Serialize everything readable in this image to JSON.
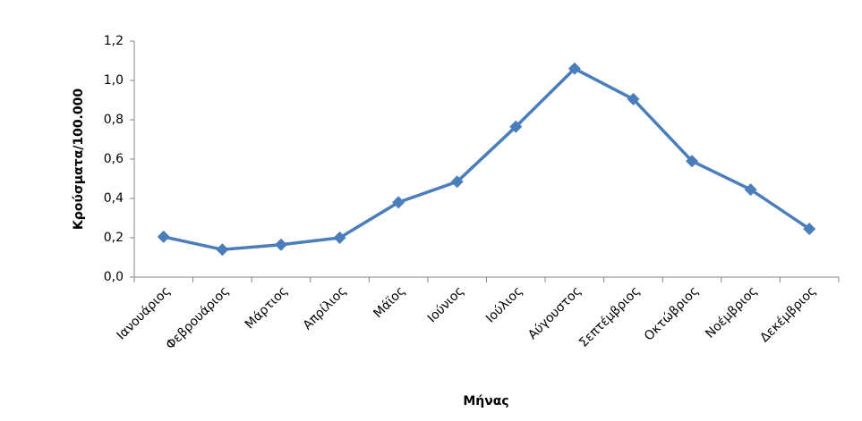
{
  "chart_data": {
    "type": "line",
    "x_label": "Μήνας",
    "y_label": "Κρούσματα/100.000",
    "categories": [
      "Ιανουάριος",
      "Φεβρουάριος",
      "Μάρτιος",
      "Απρίλιος",
      "Μάϊος",
      "Ιούνιος",
      "Ιούλιος",
      "Αύγουστος",
      "Σεπτέμβριος",
      "Οκτώβριος",
      "Νοέμβριος",
      "Δεκέμβριος"
    ],
    "values": [
      0.205,
      0.14,
      0.165,
      0.2,
      0.38,
      0.485,
      0.765,
      1.06,
      0.905,
      0.59,
      0.445,
      0.245
    ],
    "color": "#4a7ebb",
    "ylim": [
      0,
      1.2
    ],
    "yticks": [
      {
        "value": 0,
        "label": "0,0"
      },
      {
        "value": 0.2,
        "label": "0,2"
      },
      {
        "value": 0.4,
        "label": "0,4"
      },
      {
        "value": 0.6,
        "label": "0,6"
      },
      {
        "value": 0.8,
        "label": "0,8"
      },
      {
        "value": 1.0,
        "label": "1,0"
      },
      {
        "value": 1.2,
        "label": "1,2"
      }
    ],
    "grid": false
  }
}
